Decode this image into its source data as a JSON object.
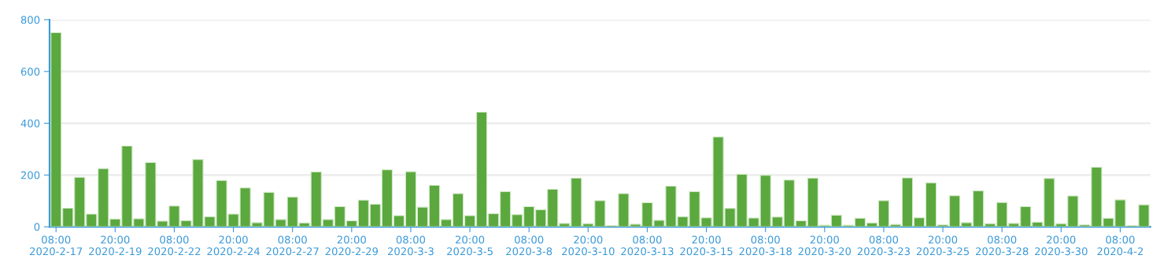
{
  "chart_data": {
    "type": "bar",
    "color": "#5ba83f",
    "ylim": [
      0,
      800
    ],
    "yticks": [
      0,
      200,
      400,
      600,
      800
    ],
    "grid": "y",
    "categories": [
      "08:00\n2020-2-17",
      null,
      null,
      null,
      null,
      "20:00\n2020-2-19",
      null,
      null,
      null,
      null,
      "08:00\n2020-2-22",
      null,
      null,
      null,
      null,
      "20:00\n2020-2-24",
      null,
      null,
      null,
      null,
      "08:00\n2020-2-27",
      null,
      null,
      null,
      null,
      "20:00\n2020-2-29",
      null,
      null,
      null,
      null,
      "08:00\n2020-3-3",
      null,
      null,
      null,
      null,
      "20:00\n2020-3-5",
      null,
      null,
      null,
      null,
      "08:00\n2020-3-8",
      null,
      null,
      null,
      null,
      "20:00\n2020-3-10",
      null,
      null,
      null,
      null,
      "08:00\n2020-3-13",
      null,
      null,
      null,
      null,
      "20:00\n2020-3-15",
      null,
      null,
      null,
      null,
      "08:00\n2020-3-18",
      null,
      null,
      null,
      null,
      "20:00\n2020-3-20",
      null,
      null,
      null,
      null,
      "08:00\n2020-3-23",
      null,
      null,
      null,
      null,
      "20:00\n2020-3-25",
      null,
      null,
      null,
      null,
      "08:00\n2020-3-28",
      null,
      null,
      null,
      null,
      "20:00\n2020-3-30",
      null,
      null,
      null,
      null,
      "08:00\n2020-4-2",
      null,
      null
    ],
    "values": [
      750,
      72,
      191,
      49,
      225,
      30,
      312,
      31,
      248,
      22,
      80,
      24,
      260,
      39,
      179,
      49,
      150,
      16,
      133,
      28,
      115,
      15,
      212,
      28,
      78,
      23,
      103,
      87,
      220,
      43,
      213,
      76,
      160,
      28,
      128,
      43,
      443,
      51,
      136,
      47,
      78,
      66,
      145,
      13,
      188,
      12,
      101,
      5,
      128,
      10,
      93,
      25,
      157,
      39,
      136,
      35,
      347,
      71,
      203,
      34,
      199,
      38,
      181,
      23,
      188,
      6,
      45,
      6,
      33,
      15,
      101,
      9,
      189,
      35,
      170,
      7,
      120,
      16,
      139,
      12,
      94,
      13,
      78,
      18,
      187,
      12,
      119,
      7,
      230,
      33,
      104,
      5,
      85
    ]
  }
}
